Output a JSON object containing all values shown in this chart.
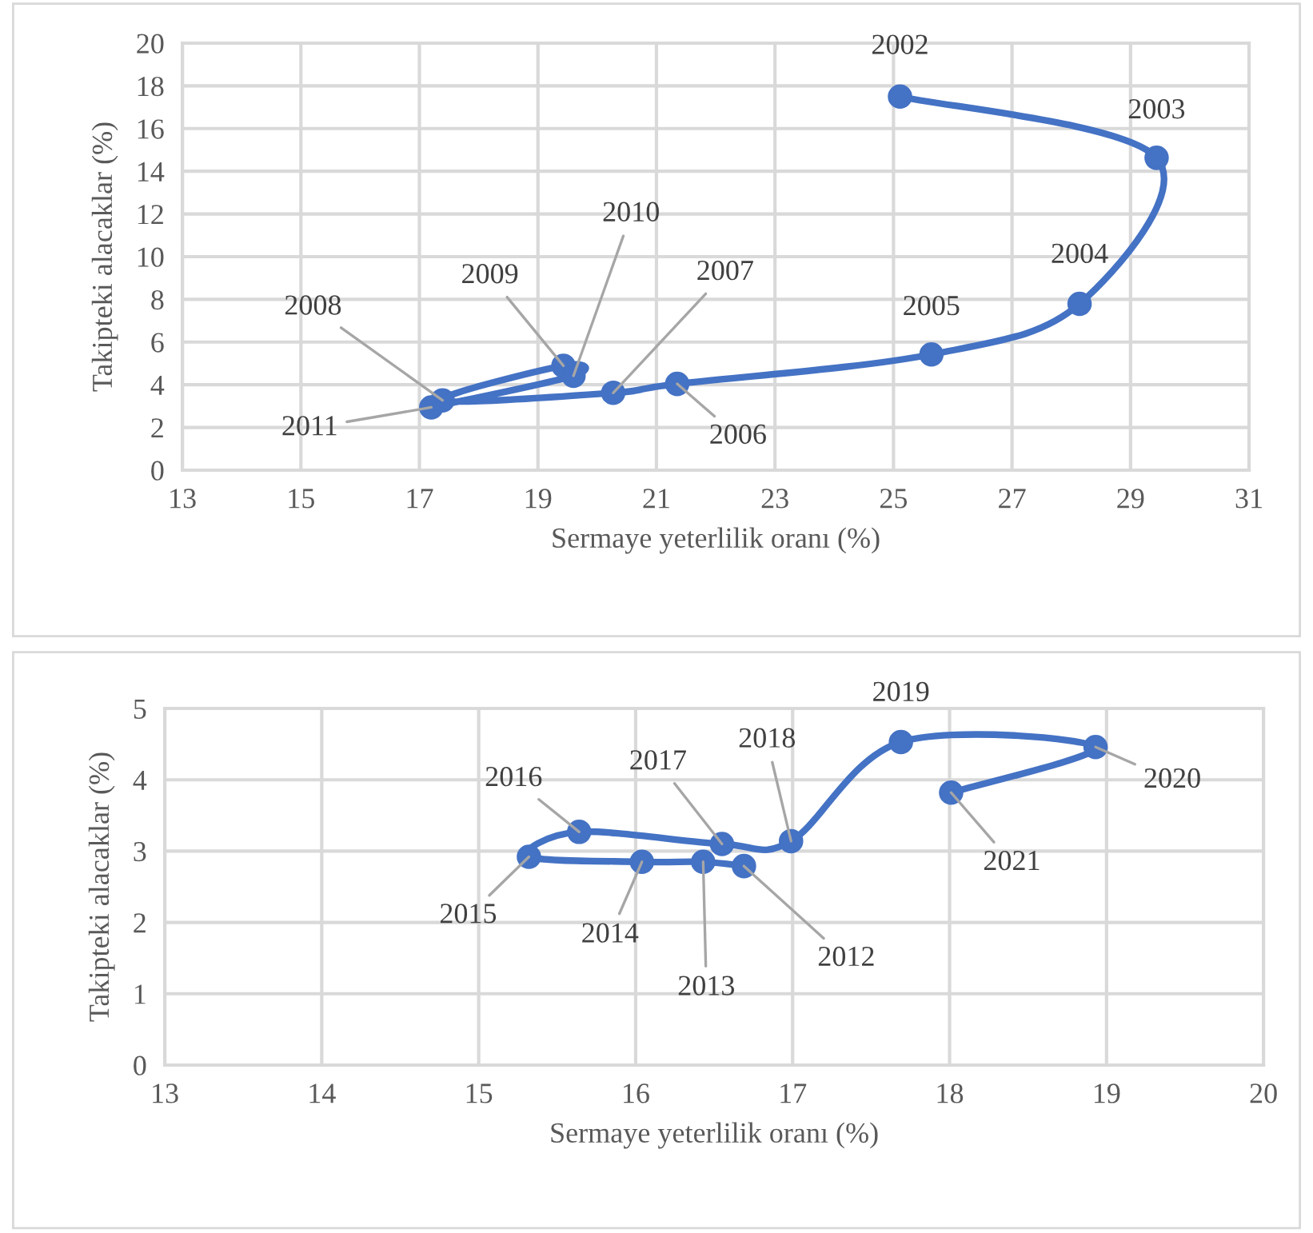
{
  "chart_data": [
    {
      "type": "line",
      "xlabel": "Sermaye yeterlilik oranı (%)",
      "ylabel": "Takipteki alacaklar (%)",
      "xlim": [
        13,
        31
      ],
      "xticks": [
        13,
        15,
        17,
        19,
        21,
        23,
        25,
        27,
        29,
        31
      ],
      "ylim": [
        0,
        20
      ],
      "yticks": [
        0,
        2,
        4,
        6,
        8,
        10,
        12,
        14,
        16,
        18,
        20
      ],
      "grid": true,
      "marker": "circle",
      "line_style": "solid",
      "series": [
        {
          "color": "#4472c4",
          "x": [
            25.11,
            29.44,
            28.14,
            25.64,
            21.35,
            20.27,
            17.39,
            19.43,
            19.6,
            17.2
          ],
          "values": [
            17.5,
            14.63,
            7.79,
            5.42,
            4.04,
            3.62,
            3.27,
            4.89,
            4.42,
            2.94
          ]
        }
      ],
      "annotations": [
        {
          "text": "2002",
          "x": 25.11,
          "y": 17.5
        },
        {
          "text": "2003",
          "x": 29.44,
          "y": 14.63
        },
        {
          "text": "2004",
          "x": 28.14,
          "y": 7.79
        },
        {
          "text": "2005",
          "x": 25.64,
          "y": 5.42
        },
        {
          "text": "2006",
          "x": 21.35,
          "y": 4.04
        },
        {
          "text": "2007",
          "x": 20.27,
          "y": 3.62
        },
        {
          "text": "2008",
          "x": 17.39,
          "y": 3.27
        },
        {
          "text": "2009",
          "x": 19.43,
          "y": 4.89
        },
        {
          "text": "2010",
          "x": 19.6,
          "y": 4.42
        },
        {
          "text": "2011",
          "x": 17.2,
          "y": 2.94
        }
      ]
    },
    {
      "type": "line",
      "xlabel": "Sermaye yeterlilik oranı (%)",
      "ylabel": "Takipteki alacaklar (%)",
      "xlim": [
        13,
        20
      ],
      "xticks": [
        13,
        14,
        15,
        16,
        17,
        18,
        19,
        20
      ],
      "ylim": [
        0,
        5
      ],
      "yticks": [
        0,
        1,
        2,
        3,
        4,
        5
      ],
      "grid": true,
      "marker": "circle",
      "line_style": "solid",
      "series": [
        {
          "color": "#4472c4",
          "x": [
            16.69,
            16.43,
            16.04,
            15.32,
            15.64,
            16.55,
            16.99,
            17.69,
            18.93,
            18.01
          ],
          "values": [
            2.79,
            2.85,
            2.85,
            2.92,
            3.27,
            3.1,
            3.14,
            4.53,
            4.46,
            3.82
          ]
        }
      ],
      "annotations": [
        {
          "text": "2012",
          "x": 16.69,
          "y": 2.79
        },
        {
          "text": "2013",
          "x": 16.43,
          "y": 2.85
        },
        {
          "text": "2014",
          "x": 16.04,
          "y": 2.85
        },
        {
          "text": "2015",
          "x": 15.32,
          "y": 2.92
        },
        {
          "text": "2016",
          "x": 15.64,
          "y": 3.27
        },
        {
          "text": "2017",
          "x": 16.55,
          "y": 3.1
        },
        {
          "text": "2018",
          "x": 16.99,
          "y": 3.14
        },
        {
          "text": "2019",
          "x": 17.69,
          "y": 4.53
        },
        {
          "text": "2020",
          "x": 18.93,
          "y": 4.46
        },
        {
          "text": "2021",
          "x": 18.01,
          "y": 3.82
        }
      ]
    }
  ]
}
